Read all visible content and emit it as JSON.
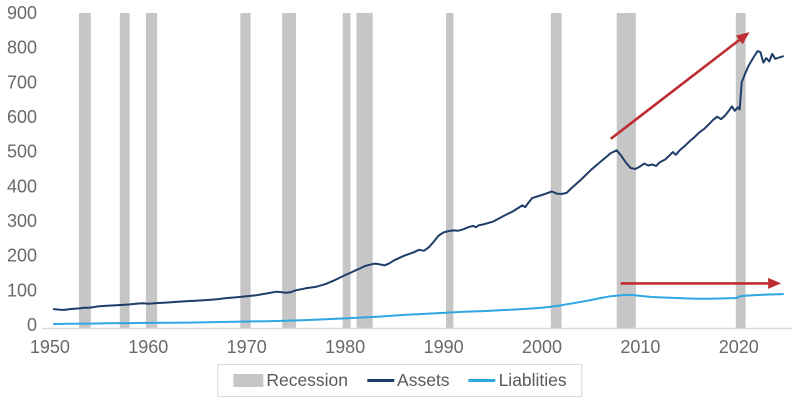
{
  "legend": {
    "items": [
      {
        "id": "recession",
        "label": "Recession",
        "swatch": "rect"
      },
      {
        "id": "assets",
        "label": "Assets",
        "swatch": "line"
      },
      {
        "id": "liabilities",
        "label": "Liablities",
        "swatch": "line"
      }
    ]
  },
  "colors": {
    "assets": "#1f3d68",
    "liabilities": "#2da8e0",
    "recession": "#c6c6c6",
    "arrow": "#bd2e34",
    "axis_text": "#696969",
    "legend_text": "#595959",
    "axis_line": "#d9d9d9"
  },
  "chart_data": {
    "type": "line",
    "title": "",
    "xlabel": "",
    "ylabel": "",
    "grid": false,
    "legend_position": "bottom-center",
    "xlim": [
      1949.6,
      2024.8
    ],
    "ylim": [
      0,
      900
    ],
    "x_ticks": [
      1950,
      1960,
      1970,
      1980,
      1990,
      2000,
      2010,
      2020
    ],
    "y_ticks": [
      0,
      100,
      200,
      300,
      400,
      500,
      600,
      700,
      800,
      900
    ],
    "series": [
      {
        "name": "Assets",
        "color": "#1f3d68",
        "x": [
          1950.4,
          1951,
          1951.5,
          1952,
          1952.5,
          1953,
          1953.5,
          1954,
          1954.5,
          1955,
          1956,
          1957,
          1958,
          1959,
          1959.5,
          1960,
          1961,
          1962,
          1963,
          1964,
          1965,
          1966,
          1967,
          1968,
          1969,
          1970,
          1971,
          1972,
          1973,
          1973.5,
          1974,
          1974.5,
          1975,
          1976,
          1977,
          1978,
          1979,
          1980,
          1980.5,
          1981,
          1981.5,
          1982,
          1982.5,
          1983,
          1983.5,
          1984,
          1984.5,
          1985,
          1986,
          1987,
          1987.5,
          1988,
          1988.5,
          1989,
          1989.5,
          1990,
          1990.5,
          1991,
          1991.5,
          1992,
          1992.5,
          1993,
          1993.3,
          1993.6,
          1994,
          1995,
          1996,
          1997,
          1997.5,
          1998,
          1998.3,
          1998.6,
          1999,
          2000,
          2000.5,
          2001,
          2001.5,
          2002,
          2002.5,
          2003,
          2004,
          2005,
          2006,
          2007,
          2007.6,
          2008,
          2008.5,
          2009,
          2009.5,
          2010,
          2010.4,
          2010.8,
          2011.2,
          2011.6,
          2012,
          2012.5,
          2013,
          2013.3,
          2013.6,
          2014,
          2014.5,
          2015,
          2015.5,
          2016,
          2016.5,
          2017,
          2017.4,
          2017.8,
          2018.2,
          2018.6,
          2019,
          2019.3,
          2019.6,
          2019.9,
          2020.1,
          2020.3,
          2020.6,
          2021,
          2021.5,
          2021.9,
          2022.2,
          2022.5,
          2022.8,
          2023.1,
          2023.4,
          2023.7,
          2024.5
        ],
        "values": [
          46,
          44,
          43.5,
          46,
          47,
          48,
          49.5,
          50,
          52,
          54,
          56,
          57.5,
          59,
          62,
          63,
          61.5,
          63.5,
          65,
          67,
          69,
          70.5,
          72,
          74.5,
          78,
          80,
          83,
          86,
          91,
          96,
          95,
          93,
          95,
          100,
          106,
          110,
          118,
          130,
          144,
          150,
          157,
          163,
          170,
          174,
          177,
          175,
          172,
          178,
          187,
          200,
          210,
          217,
          214,
          224,
          240,
          258,
          267,
          271,
          273,
          272,
          276,
          282,
          286,
          282,
          288,
          290,
          298,
          313,
          327,
          336,
          345,
          340,
          352,
          366,
          375,
          380,
          385,
          379,
          378,
          381,
          395,
          420,
          448,
          472,
          496,
          504,
          490,
          470,
          453,
          450,
          458,
          466,
          460,
          463,
          459,
          470,
          477,
          490,
          499,
          491,
          504,
          516,
          530,
          542,
          556,
          566,
          580,
          592,
          601,
          594,
          604,
          618,
          631,
          618,
          628,
          622,
          700,
          722,
          748,
          772,
          790,
          787,
          757,
          770,
          760,
          782,
          768,
          775
        ]
      },
      {
        "name": "Liablities",
        "color": "#2da8e0",
        "x": [
          1950.4,
          1952,
          1954,
          1956,
          1958,
          1960,
          1962,
          1964,
          1966,
          1968,
          1970,
          1972,
          1974,
          1976,
          1978,
          1980,
          1982,
          1984,
          1986,
          1988,
          1990,
          1992,
          1994,
          1996,
          1998,
          2000,
          2001,
          2002,
          2003,
          2004,
          2005,
          2006,
          2007,
          2008,
          2009,
          2010,
          2011,
          2012,
          2013,
          2014,
          2015,
          2016,
          2017,
          2018,
          2019,
          2019.8,
          2020.1,
          2020.5,
          2021,
          2022,
          2023,
          2024.5
        ],
        "values": [
          3,
          3.5,
          4,
          5,
          5.5,
          6,
          6.5,
          7,
          8,
          9,
          10,
          11,
          12.5,
          14,
          16.5,
          19,
          22,
          25,
          29,
          32,
          35,
          38,
          40,
          43,
          46,
          50,
          53,
          57,
          62,
          67,
          72,
          78,
          83,
          86,
          87,
          84,
          81,
          79.5,
          78.5,
          77.5,
          76.5,
          76,
          76,
          76.5,
          77,
          78,
          83,
          84,
          85,
          86.5,
          88,
          89
        ]
      }
    ],
    "recessions": [
      [
        1952.95,
        1954.15
      ],
      [
        1957.1,
        1958.1
      ],
      [
        1959.75,
        1960.9
      ],
      [
        1969.35,
        1970.4
      ],
      [
        1973.6,
        1975.0
      ],
      [
        1979.75,
        1980.55
      ],
      [
        1981.15,
        1982.8
      ],
      [
        1990.25,
        1991.0
      ],
      [
        2000.9,
        2002.0
      ],
      [
        2007.6,
        2009.55
      ],
      [
        2019.7,
        2020.7
      ]
    ],
    "arrows": [
      {
        "name": "assets-trend-arrow",
        "x1": 2007.0,
        "y1": 537,
        "x2": 2021.1,
        "y2": 845
      },
      {
        "name": "liabilities-trend-arrow",
        "x1": 2008.0,
        "y1": 120,
        "x2": 2024.3,
        "y2": 120
      }
    ]
  }
}
